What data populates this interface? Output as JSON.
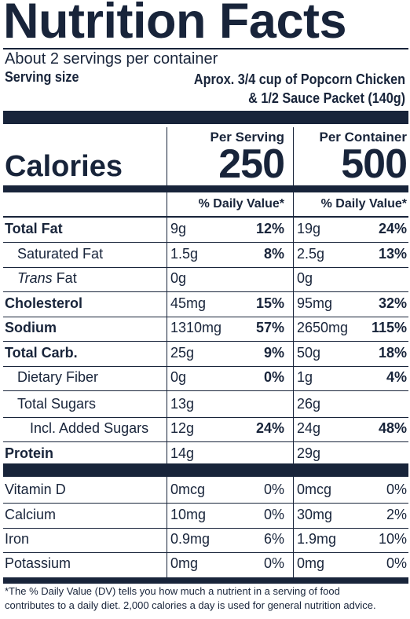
{
  "title": "Nutrition Facts",
  "servings_per_container": "About 2 servings per container",
  "serving_size_label": "Serving size",
  "serving_size_line1": "Aprox. 3/4 cup of Popcorn Chicken",
  "serving_size_line2": "& 1/2 Sauce Packet (140g)",
  "col_serving_header": "Per Serving",
  "col_container_header": "Per Container",
  "calories_label": "Calories",
  "calories_serving": "250",
  "calories_container": "500",
  "dv_header": "% Daily Value*",
  "nutrients": [
    {
      "label": "Total Fat",
      "amt1": "9g",
      "dv1": "12%",
      "amt2": "19g",
      "dv2": "24%"
    },
    {
      "label": "Saturated Fat",
      "amt1": "1.5g",
      "dv1": "8%",
      "amt2": "2.5g",
      "dv2": "13%"
    },
    {
      "label_italic": "Trans",
      "label_rest": " Fat",
      "amt1": "0g",
      "amt2": "0g"
    },
    {
      "label": "Cholesterol",
      "amt1": "45mg",
      "dv1": "15%",
      "amt2": "95mg",
      "dv2": "32%"
    },
    {
      "label": "Sodium",
      "amt1": "1310mg",
      "dv1": "57%",
      "amt2": "2650mg",
      "dv2": "115%"
    },
    {
      "label": "Total Carb.",
      "amt1": "25g",
      "dv1": "9%",
      "amt2": "50g",
      "dv2": "18%"
    },
    {
      "label": "Dietary Fiber",
      "amt1": "0g",
      "dv1": "0%",
      "amt2": "1g",
      "dv2": "4%"
    },
    {
      "label": "Total Sugars",
      "amt1": "13g",
      "amt2": "26g"
    },
    {
      "label": "Incl. Added Sugars",
      "amt1": "12g",
      "dv1": "24%",
      "amt2": "24g",
      "dv2": "48%"
    },
    {
      "label": "Protein",
      "amt1": "14g",
      "amt2": "29g"
    }
  ],
  "vitamins": [
    {
      "label": "Vitamin D",
      "amt1": "0mcg",
      "dv1": "0%",
      "amt2": "0mcg",
      "dv2": "0%"
    },
    {
      "label": "Calcium",
      "amt1": "10mg",
      "dv1": "0%",
      "amt2": "30mg",
      "dv2": "2%"
    },
    {
      "label": "Iron",
      "amt1": "0.9mg",
      "dv1": "6%",
      "amt2": "1.9mg",
      "dv2": "10%"
    },
    {
      "label": "Potassium",
      "amt1": "0mg",
      "dv1": "0%",
      "amt2": "0mg",
      "dv2": "0%"
    }
  ],
  "footnote_line1": "*The % Daily Value (DV) tells you how much a nutrient in a serving of food",
  "footnote_line2": "contributes to a daily diet. 2,000 calories a day is used for general nutrition advice."
}
